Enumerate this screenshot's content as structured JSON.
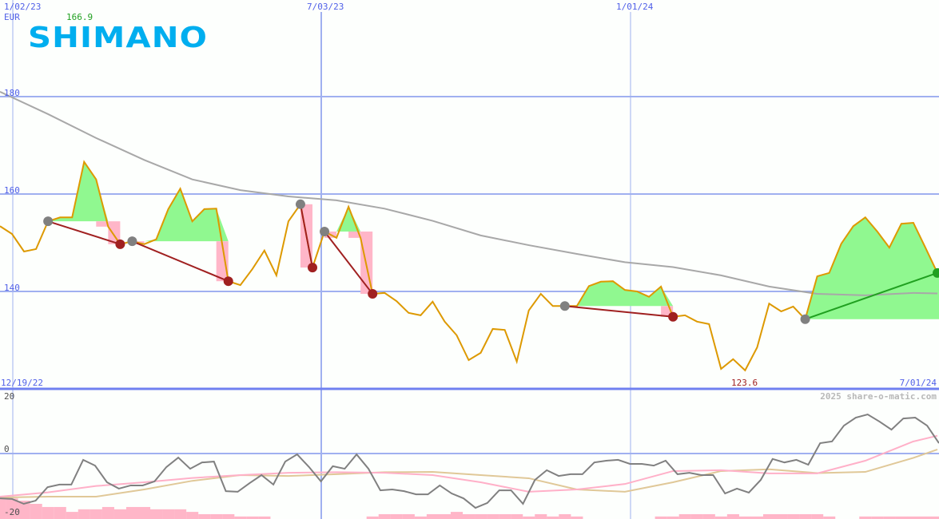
{
  "header": {
    "company_logo": "SHIMANO",
    "currency": "EUR",
    "high_label": "166.9",
    "low_label": "123.6",
    "watermark": "2025 share-o-matic.com"
  },
  "colors": {
    "price_line": "#dd9900",
    "moving_average": "#a8a8a8",
    "gain_fill": "#90f890",
    "loss_fill": "#ffb6c8",
    "loss_trend": "#a02020",
    "gain_trend": "#20a020",
    "signal_start": "#808080",
    "grid": "#a0b0f0",
    "axis_text": "#5060e8",
    "high_text": "#20a020",
    "low_text": "#a02020",
    "oscillator": "#808080",
    "osc_signal_pink": "#ffb0c8",
    "osc_signal_tan": "#e0c898",
    "histogram": "#ffb6c8",
    "logo": "#00aeef"
  },
  "chart_data": [
    {
      "type": "line",
      "title": "",
      "x_axis": {
        "type": "date",
        "top_ticks": [
          "1/02/23",
          "7/03/23",
          "1/01/24"
        ],
        "bottom_left": "12/19/22",
        "bottom_right": "7/01/24"
      },
      "y_axis": {
        "ylim": [
          120,
          200
        ],
        "ticks": [
          "180",
          "160",
          "140"
        ],
        "unit": "EUR"
      },
      "grid": true,
      "price": {
        "start": "2022-12-19",
        "frequency": "weekly",
        "values": [
          153.4,
          151.8,
          148.2,
          148.7,
          154.4,
          155.2,
          155.2,
          166.6,
          163.0,
          153.3,
          149.7,
          150.3,
          149.7,
          150.7,
          156.9,
          161.1,
          154.4,
          156.9,
          157.0,
          142.1,
          141.3,
          144.6,
          148.4,
          143.3,
          154.4,
          157.9,
          144.9,
          152.3,
          151.0,
          157.4,
          151.0,
          139.5,
          139.7,
          138.0,
          135.6,
          135.1,
          137.9,
          133.8,
          131.0,
          125.9,
          127.4,
          132.3,
          132.1,
          125.6,
          136.1,
          139.5,
          137.0,
          137.0,
          137.0,
          141.1,
          142.0,
          142.1,
          140.3,
          140.0,
          138.9,
          141.0,
          134.8,
          135.1,
          133.8,
          133.3,
          124.1,
          126.1,
          123.8,
          128.5,
          137.5,
          135.9,
          136.9,
          134.3,
          143.1,
          143.8,
          149.8,
          153.4,
          155.2,
          152.3,
          149.0,
          153.9,
          154.1,
          149.0,
          143.8
        ]
      },
      "moving_average": [
        [
          "2022-12-19",
          181.0
        ],
        [
          "2023-01-16",
          176.4
        ],
        [
          "2023-02-13",
          171.5
        ],
        [
          "2023-03-13",
          167.0
        ],
        [
          "2023-04-10",
          163.0
        ],
        [
          "2023-05-08",
          160.8
        ],
        [
          "2023-06-05",
          159.5
        ],
        [
          "2023-07-03",
          158.7
        ],
        [
          "2023-07-31",
          157.0
        ],
        [
          "2023-08-28",
          154.5
        ],
        [
          "2023-09-25",
          151.5
        ],
        [
          "2023-10-23",
          149.5
        ],
        [
          "2023-11-20",
          147.7
        ],
        [
          "2023-12-18",
          146.0
        ],
        [
          "2024-01-15",
          145.0
        ],
        [
          "2024-02-12",
          143.3
        ],
        [
          "2024-03-11",
          141.0
        ],
        [
          "2024-04-08",
          139.5
        ],
        [
          "2024-05-06",
          139.2
        ],
        [
          "2024-06-03",
          139.7
        ],
        [
          "2024-06-17",
          139.6
        ]
      ],
      "signals": [
        {
          "start": "2023-01-16",
          "end": "2023-02-27",
          "trend": "down"
        },
        {
          "start": "2023-03-06",
          "end": "2023-05-01",
          "trend": "down"
        },
        {
          "start": "2023-06-12",
          "end": "2023-06-19",
          "trend": "down"
        },
        {
          "start": "2023-06-26",
          "end": "2023-07-24",
          "trend": "down"
        },
        {
          "start": "2023-11-13",
          "end": "2024-01-15",
          "trend": "down"
        },
        {
          "start": "2024-04-01",
          "end": "2024-06-17",
          "trend": "up"
        }
      ]
    },
    {
      "type": "line",
      "title": "",
      "y_axis": {
        "ylim": [
          -22.5,
          22.5
        ],
        "ticks": [
          "20",
          "0",
          "-20"
        ]
      },
      "grid": true,
      "oscillator": [
        -15.6,
        -15.8,
        -17.5,
        -16.4,
        -11.7,
        -10.8,
        -10.8,
        -2.2,
        -4.2,
        -10.0,
        -12.2,
        -11.1,
        -11.1,
        -9.7,
        -4.7,
        -1.4,
        -5.3,
        -3.1,
        -2.8,
        -13.1,
        -13.3,
        -10.3,
        -7.5,
        -10.8,
        -2.8,
        -0.3,
        -4.7,
        -9.7,
        -4.4,
        -5.3,
        -0.3,
        -5.3,
        -12.8,
        -12.5,
        -13.1,
        -14.2,
        -14.2,
        -11.1,
        -13.9,
        -15.6,
        -18.9,
        -17.2,
        -12.8,
        -12.8,
        -17.5,
        -9.2,
        -5.8,
        -7.8,
        -7.2,
        -7.2,
        -3.1,
        -2.5,
        -2.2,
        -3.6,
        -3.6,
        -4.2,
        -2.5,
        -7.2,
        -6.7,
        -7.5,
        -7.5,
        -13.9,
        -12.2,
        -13.6,
        -9.2,
        -1.9,
        -3.1,
        -2.2,
        -3.9,
        3.6,
        4.2,
        9.7,
        12.5,
        13.6,
        11.1,
        8.3,
        12.2,
        12.5,
        9.7,
        3.6
      ],
      "signal_pink": [
        [
          "2022-12-19",
          -15.0
        ],
        [
          "2023-01-16",
          -13.5
        ],
        [
          "2023-02-13",
          -11.3
        ],
        [
          "2023-03-13",
          -10.0
        ],
        [
          "2023-04-10",
          -8.5
        ],
        [
          "2023-05-08",
          -7.5
        ],
        [
          "2023-06-05",
          -6.7
        ],
        [
          "2023-07-03",
          -6.5
        ],
        [
          "2023-07-31",
          -6.7
        ],
        [
          "2023-08-28",
          -7.5
        ],
        [
          "2023-09-25",
          -10.0
        ],
        [
          "2023-10-23",
          -13.3
        ],
        [
          "2023-11-20",
          -12.5
        ],
        [
          "2023-12-18",
          -10.6
        ],
        [
          "2024-01-15",
          -6.1
        ],
        [
          "2024-02-12",
          -5.8
        ],
        [
          "2024-03-11",
          -6.9
        ],
        [
          "2024-04-08",
          -6.9
        ],
        [
          "2024-05-06",
          -2.5
        ],
        [
          "2024-06-03",
          4.2
        ],
        [
          "2024-06-17",
          6.2
        ]
      ],
      "signal_tan": [
        [
          "2022-12-19",
          -15.3
        ],
        [
          "2023-01-16",
          -15.0
        ],
        [
          "2023-02-13",
          -15.0
        ],
        [
          "2023-03-13",
          -12.5
        ],
        [
          "2023-04-10",
          -9.5
        ],
        [
          "2023-05-08",
          -7.5
        ],
        [
          "2023-06-05",
          -7.8
        ],
        [
          "2023-07-03",
          -7.2
        ],
        [
          "2023-07-31",
          -6.5
        ],
        [
          "2023-08-28",
          -6.4
        ],
        [
          "2023-09-25",
          -7.5
        ],
        [
          "2023-10-23",
          -8.6
        ],
        [
          "2023-11-20",
          -12.5
        ],
        [
          "2023-12-18",
          -13.3
        ],
        [
          "2024-01-15",
          -10.0
        ],
        [
          "2024-02-12",
          -6.1
        ],
        [
          "2024-03-11",
          -5.5
        ],
        [
          "2024-04-08",
          -6.8
        ],
        [
          "2024-05-06",
          -6.4
        ],
        [
          "2024-06-03",
          -1.5
        ],
        [
          "2024-06-17",
          1.4
        ]
      ],
      "histogram": [
        -15.0,
        -15.6,
        -16.4,
        -17.5,
        -18.6,
        -18.6,
        -20.3,
        -19.4,
        -19.4,
        -18.6,
        -19.4,
        -18.6,
        -18.6,
        -19.4,
        -19.4,
        -19.4,
        -20.3,
        -21.1,
        -21.1,
        -21.1,
        -21.9,
        -21.9,
        -21.9,
        null,
        null,
        null,
        null,
        null,
        null,
        null,
        null,
        -21.9,
        -21.1,
        -21.1,
        -21.1,
        -21.9,
        -21.1,
        -21.1,
        -20.3,
        -21.1,
        -21.1,
        -21.1,
        -21.1,
        -21.1,
        -21.9,
        -21.1,
        -21.9,
        -21.1,
        -21.9,
        null,
        null,
        null,
        null,
        null,
        null,
        -21.9,
        -21.9,
        -21.1,
        -21.1,
        -21.1,
        -21.9,
        -21.1,
        -21.9,
        -21.9,
        -21.1,
        -21.1,
        -21.1,
        -21.1,
        -21.1,
        -21.9,
        null,
        null,
        -21.9,
        -21.9,
        -21.9,
        -21.9,
        -21.9,
        -21.9,
        -21.9
      ]
    }
  ]
}
